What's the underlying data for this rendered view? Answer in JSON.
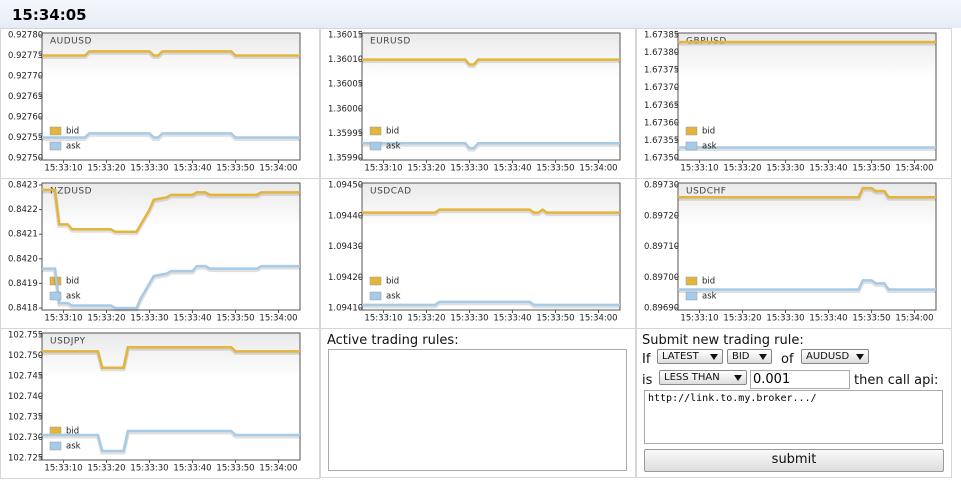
{
  "clock": "15:34:05",
  "chart_data": [
    {
      "type": "line",
      "title": "AUDUSD",
      "xlim": [
        "15:33:05",
        "15:34:05"
      ],
      "xticks": [
        "15:33:10",
        "15:33:20",
        "15:33:30",
        "15:33:40",
        "15:33:50",
        "15:34:00"
      ],
      "ylim": [
        0.9275,
        0.9278
      ],
      "yticks": [
        {
          "value": 0.9278,
          "label": "0.92780"
        },
        0.92775,
        {
          "value": 0.9277,
          "label": "0.92770"
        },
        0.92765,
        {
          "value": 0.9276,
          "label": "0.92760"
        },
        0.92755,
        {
          "value": 0.9275,
          "label": "0.92750"
        }
      ],
      "x": [
        "15:33:05",
        "15:33:15",
        "15:33:16",
        "15:33:30",
        "15:33:31",
        "15:33:32",
        "15:33:33",
        "15:33:49",
        "15:33:50",
        "15:34:05"
      ],
      "series": [
        {
          "name": "bid",
          "color": "#e3b53c",
          "values": [
            0.92775,
            0.92775,
            0.92776,
            0.92776,
            0.92775,
            0.92775,
            0.92776,
            0.92776,
            0.92775,
            0.92775
          ]
        },
        {
          "name": "ask",
          "color": "#a6cbe8",
          "values": [
            0.92755,
            0.92755,
            0.92756,
            0.92756,
            0.92755,
            0.92755,
            0.92756,
            0.92756,
            0.92755,
            0.92755
          ]
        }
      ]
    },
    {
      "type": "line",
      "title": "EURUSD",
      "xlim": [
        "15:33:05",
        "15:34:05"
      ],
      "xticks": [
        "15:33:10",
        "15:33:20",
        "15:33:30",
        "15:33:40",
        "15:33:50",
        "15:34:00"
      ],
      "ylim": [
        1.3599,
        1.36015
      ],
      "yticks": [
        1.36015,
        {
          "value": 1.3601,
          "label": "1.36010"
        },
        1.36005,
        {
          "value": 1.36,
          "label": "1.36000"
        },
        1.35995,
        {
          "value": 1.3599,
          "label": "1.35990"
        }
      ],
      "x": [
        "15:33:05",
        "15:33:29",
        "15:33:30",
        "15:33:31",
        "15:33:32",
        "15:34:05"
      ],
      "series": [
        {
          "name": "bid",
          "color": "#e3b53c",
          "values": [
            1.3601,
            1.3601,
            1.36009,
            1.36009,
            1.3601,
            1.3601
          ]
        },
        {
          "name": "ask",
          "color": "#a6cbe8",
          "values": [
            1.35993,
            1.35993,
            1.35992,
            1.35992,
            1.35993,
            1.35993
          ]
        }
      ]
    },
    {
      "type": "line",
      "title": "GBPUSD",
      "xlim": [
        "15:33:05",
        "15:34:05"
      ],
      "xticks": [
        "15:33:10",
        "15:33:20",
        "15:33:30",
        "15:33:40",
        "15:33:50",
        "15:34:00"
      ],
      "ylim": [
        1.6735,
        1.67385
      ],
      "yticks": [
        1.67385,
        {
          "value": 1.6738,
          "label": "1.67380"
        },
        1.67375,
        {
          "value": 1.6737,
          "label": "1.67370"
        },
        1.67365,
        {
          "value": 1.6736,
          "label": "1.67360"
        },
        1.67355,
        {
          "value": 1.6735,
          "label": "1.67350"
        }
      ],
      "x": [
        "15:33:05",
        "15:34:05"
      ],
      "series": [
        {
          "name": "bid",
          "color": "#e3b53c",
          "values": [
            1.67383,
            1.67383
          ]
        },
        {
          "name": "ask",
          "color": "#a6cbe8",
          "values": [
            1.67353,
            1.67353
          ]
        }
      ]
    },
    {
      "type": "line",
      "title": "NZDUSD",
      "xlim": [
        "15:33:05",
        "15:34:05"
      ],
      "xticks": [
        "15:33:10",
        "15:33:20",
        "15:33:30",
        "15:33:40",
        "15:33:50",
        "15:34:00"
      ],
      "ylim": [
        0.8418,
        0.8423
      ],
      "yticks": [
        0.8423,
        0.8422,
        0.8421,
        {
          "value": 0.842,
          "label": "0.8420"
        },
        0.8419,
        0.8418
      ],
      "x": [
        "15:33:05",
        "15:33:08",
        "15:33:09",
        "15:33:11",
        "15:33:12",
        "15:33:21",
        "15:33:22",
        "15:33:27",
        "15:33:28",
        "15:33:30",
        "15:33:31",
        "15:33:34",
        "15:33:35",
        "15:33:40",
        "15:33:41",
        "15:33:43",
        "15:33:44",
        "15:33:55",
        "15:33:56",
        "15:34:05"
      ],
      "series": [
        {
          "name": "bid",
          "color": "#e3b53c",
          "values": [
            0.84228,
            0.84228,
            0.84214,
            0.84214,
            0.84212,
            0.84212,
            0.84211,
            0.84211,
            0.84214,
            0.8422,
            0.84224,
            0.84225,
            0.84226,
            0.84226,
            0.84227,
            0.84227,
            0.84226,
            0.84226,
            0.84227,
            0.84227
          ]
        },
        {
          "name": "ask",
          "color": "#a6cbe8",
          "values": [
            0.84196,
            0.84196,
            0.84182,
            0.84182,
            0.84181,
            0.84181,
            0.8418,
            0.8418,
            0.84184,
            0.8419,
            0.84193,
            0.84194,
            0.84195,
            0.84195,
            0.84197,
            0.84197,
            0.84196,
            0.84196,
            0.84197,
            0.84197
          ]
        }
      ]
    },
    {
      "type": "line",
      "title": "USDCAD",
      "xlim": [
        "15:33:05",
        "15:34:05"
      ],
      "xticks": [
        "15:33:10",
        "15:33:20",
        "15:33:30",
        "15:33:40",
        "15:33:50",
        "15:34:00"
      ],
      "ylim": [
        1.0941,
        1.0945
      ],
      "yticks": [
        {
          "value": 1.0945,
          "label": "1.09450"
        },
        {
          "value": 1.0944,
          "label": "1.09440"
        },
        {
          "value": 1.0943,
          "label": "1.09430"
        },
        {
          "value": 1.0942,
          "label": "1.09420"
        },
        {
          "value": 1.0941,
          "label": "1.09410"
        }
      ],
      "x": [
        "15:33:05",
        "15:33:22",
        "15:33:23",
        "15:33:44",
        "15:33:45",
        "15:33:46",
        "15:33:47",
        "15:33:48",
        "15:34:05"
      ],
      "series": [
        {
          "name": "bid",
          "color": "#e3b53c",
          "values": [
            1.09441,
            1.09441,
            1.09442,
            1.09442,
            1.09441,
            1.09441,
            1.09442,
            1.09441,
            1.09441
          ]
        },
        {
          "name": "ask",
          "color": "#a6cbe8",
          "values": [
            1.09411,
            1.09411,
            1.09412,
            1.09412,
            1.09411,
            1.09411,
            1.09411,
            1.09411,
            1.09411
          ]
        }
      ]
    },
    {
      "type": "line",
      "title": "USDCHF",
      "xlim": [
        "15:33:05",
        "15:34:05"
      ],
      "xticks": [
        "15:33:10",
        "15:33:20",
        "15:33:30",
        "15:33:40",
        "15:33:50",
        "15:34:00"
      ],
      "ylim": [
        0.8969,
        0.8973
      ],
      "yticks": [
        {
          "value": 0.8973,
          "label": "0.89730"
        },
        {
          "value": 0.8972,
          "label": "0.89720"
        },
        {
          "value": 0.8971,
          "label": "0.89710"
        },
        {
          "value": 0.897,
          "label": "0.89700"
        },
        {
          "value": 0.8969,
          "label": "0.89690"
        }
      ],
      "x": [
        "15:33:05",
        "15:33:47",
        "15:33:48",
        "15:33:50",
        "15:33:51",
        "15:33:53",
        "15:33:54",
        "15:34:05"
      ],
      "series": [
        {
          "name": "bid",
          "color": "#e3b53c",
          "values": [
            0.89726,
            0.89726,
            0.89729,
            0.89729,
            0.89728,
            0.89728,
            0.89726,
            0.89726
          ]
        },
        {
          "name": "ask",
          "color": "#a6cbe8",
          "values": [
            0.89696,
            0.89696,
            0.89699,
            0.89699,
            0.89698,
            0.89698,
            0.89696,
            0.89696
          ]
        }
      ]
    },
    {
      "type": "line",
      "title": "USDJPY",
      "xlim": [
        "15:33:05",
        "15:34:05"
      ],
      "xticks": [
        "15:33:10",
        "15:33:20",
        "15:33:30",
        "15:33:40",
        "15:33:50",
        "15:34:00"
      ],
      "ylim": [
        102.725,
        102.755
      ],
      "yticks": [
        102.755,
        {
          "value": 102.75,
          "label": "102.750"
        },
        102.745,
        {
          "value": 102.74,
          "label": "102.740"
        },
        102.735,
        {
          "value": 102.73,
          "label": "102.730"
        },
        102.725
      ],
      "x": [
        "15:33:05",
        "15:33:18",
        "15:33:19",
        "15:33:24",
        "15:33:25",
        "15:33:49",
        "15:33:50",
        "15:34:05"
      ],
      "series": [
        {
          "name": "bid",
          "color": "#e3b53c",
          "values": [
            102.751,
            102.751,
            102.747,
            102.747,
            102.752,
            102.752,
            102.751,
            102.751
          ]
        },
        {
          "name": "ask",
          "color": "#a6cbe8",
          "values": [
            102.7306,
            102.7306,
            102.7267,
            102.7267,
            102.7316,
            102.7316,
            102.7306,
            102.7306
          ]
        }
      ]
    }
  ],
  "rules": {
    "title": "Active trading rules:"
  },
  "form": {
    "title": "Submit new trading rule:",
    "if_label": "If",
    "field": "LATEST",
    "side": "BID",
    "of_label": "of",
    "symbol": "AUDUSD",
    "is_label": "is",
    "comparator": "LESS THAN",
    "threshold": "0.001",
    "then_label": "then call api:",
    "api_url": "http://link.to.my.broker.../",
    "submit": "submit"
  }
}
